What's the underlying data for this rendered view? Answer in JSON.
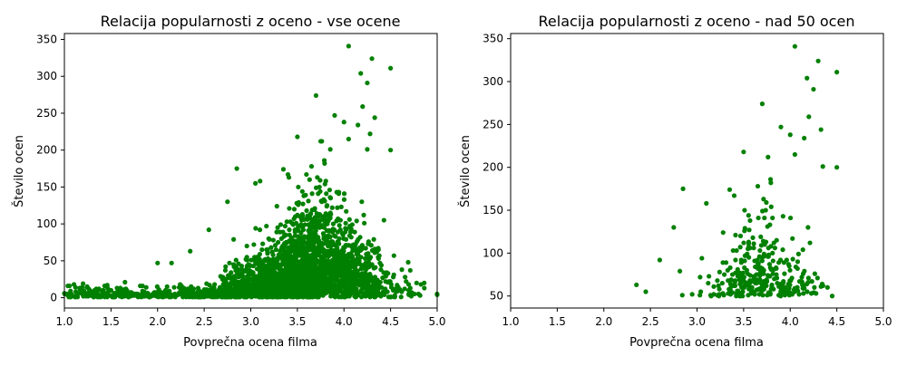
{
  "chart_data": [
    {
      "type": "scatter",
      "title": "Relacija popularnosti z oceno - vse ocene",
      "xlabel": "Povprečna ocena filma",
      "ylabel": "Število ocen",
      "xlim": [
        1.0,
        5.0
      ],
      "ylim": [
        -14,
        358
      ],
      "xticks": [
        "1.0",
        "1.5",
        "2.0",
        "2.5",
        "3.0",
        "3.5",
        "4.0",
        "4.5",
        "5.0"
      ],
      "yticks": [
        "0",
        "50",
        "100",
        "150",
        "200",
        "250",
        "300",
        "350"
      ],
      "grid": false,
      "marker_color": "#008000",
      "highlighted_points": [
        {
          "x": 4.05,
          "y": 341
        },
        {
          "x": 4.3,
          "y": 324
        },
        {
          "x": 4.5,
          "y": 311
        },
        {
          "x": 4.18,
          "y": 304
        },
        {
          "x": 4.25,
          "y": 291
        },
        {
          "x": 3.7,
          "y": 274
        },
        {
          "x": 4.2,
          "y": 259
        },
        {
          "x": 3.9,
          "y": 247
        },
        {
          "x": 4.33,
          "y": 244
        },
        {
          "x": 4.0,
          "y": 238
        },
        {
          "x": 4.15,
          "y": 234
        },
        {
          "x": 3.5,
          "y": 218
        },
        {
          "x": 4.28,
          "y": 222
        },
        {
          "x": 4.05,
          "y": 215
        },
        {
          "x": 3.75,
          "y": 212
        },
        {
          "x": 4.5,
          "y": 200
        },
        {
          "x": 4.25,
          "y": 201
        },
        {
          "x": 2.85,
          "y": 175
        },
        {
          "x": 3.35,
          "y": 174
        },
        {
          "x": 3.1,
          "y": 158
        },
        {
          "x": 3.05,
          "y": 155
        },
        {
          "x": 2.75,
          "y": 130
        },
        {
          "x": 2.55,
          "y": 92
        },
        {
          "x": 2.0,
          "y": 47
        },
        {
          "x": 2.15,
          "y": 47
        },
        {
          "x": 2.35,
          "y": 63
        },
        {
          "x": 1.2,
          "y": 19
        },
        {
          "x": 1.65,
          "y": 21
        },
        {
          "x": 1.0,
          "y": 6
        },
        {
          "x": 5.0,
          "y": 4
        },
        {
          "x": 4.6,
          "y": 11
        },
        {
          "x": 4.8,
          "y": 5
        }
      ]
    },
    {
      "type": "scatter",
      "title": "Relacija popularnosti z oceno - nad 50 ocen",
      "xlabel": "Povprečna ocena filma",
      "ylabel": "Število ocen",
      "xlim": [
        1.0,
        5.0
      ],
      "ylim": [
        36,
        356
      ],
      "xticks": [
        "1.0",
        "1.5",
        "2.0",
        "2.5",
        "3.0",
        "3.5",
        "4.0",
        "4.5",
        "5.0"
      ],
      "yticks": [
        "50",
        "100",
        "150",
        "200",
        "250",
        "300",
        "350"
      ],
      "grid": false,
      "marker_color": "#008000",
      "highlighted_points": [
        {
          "x": 4.05,
          "y": 341
        },
        {
          "x": 4.3,
          "y": 324
        },
        {
          "x": 4.5,
          "y": 311
        },
        {
          "x": 4.18,
          "y": 304
        },
        {
          "x": 4.25,
          "y": 291
        },
        {
          "x": 3.7,
          "y": 274
        },
        {
          "x": 4.2,
          "y": 259
        },
        {
          "x": 3.9,
          "y": 247
        },
        {
          "x": 4.33,
          "y": 244
        },
        {
          "x": 4.0,
          "y": 238
        },
        {
          "x": 4.15,
          "y": 234
        },
        {
          "x": 3.5,
          "y": 218
        },
        {
          "x": 4.05,
          "y": 215
        },
        {
          "x": 4.5,
          "y": 200
        },
        {
          "x": 4.35,
          "y": 201
        },
        {
          "x": 2.85,
          "y": 175
        },
        {
          "x": 3.35,
          "y": 174
        },
        {
          "x": 3.1,
          "y": 158
        },
        {
          "x": 2.75,
          "y": 130
        },
        {
          "x": 2.35,
          "y": 63
        },
        {
          "x": 2.45,
          "y": 55
        },
        {
          "x": 2.6,
          "y": 92
        },
        {
          "x": 4.45,
          "y": 50
        },
        {
          "x": 4.4,
          "y": 60
        }
      ]
    }
  ]
}
